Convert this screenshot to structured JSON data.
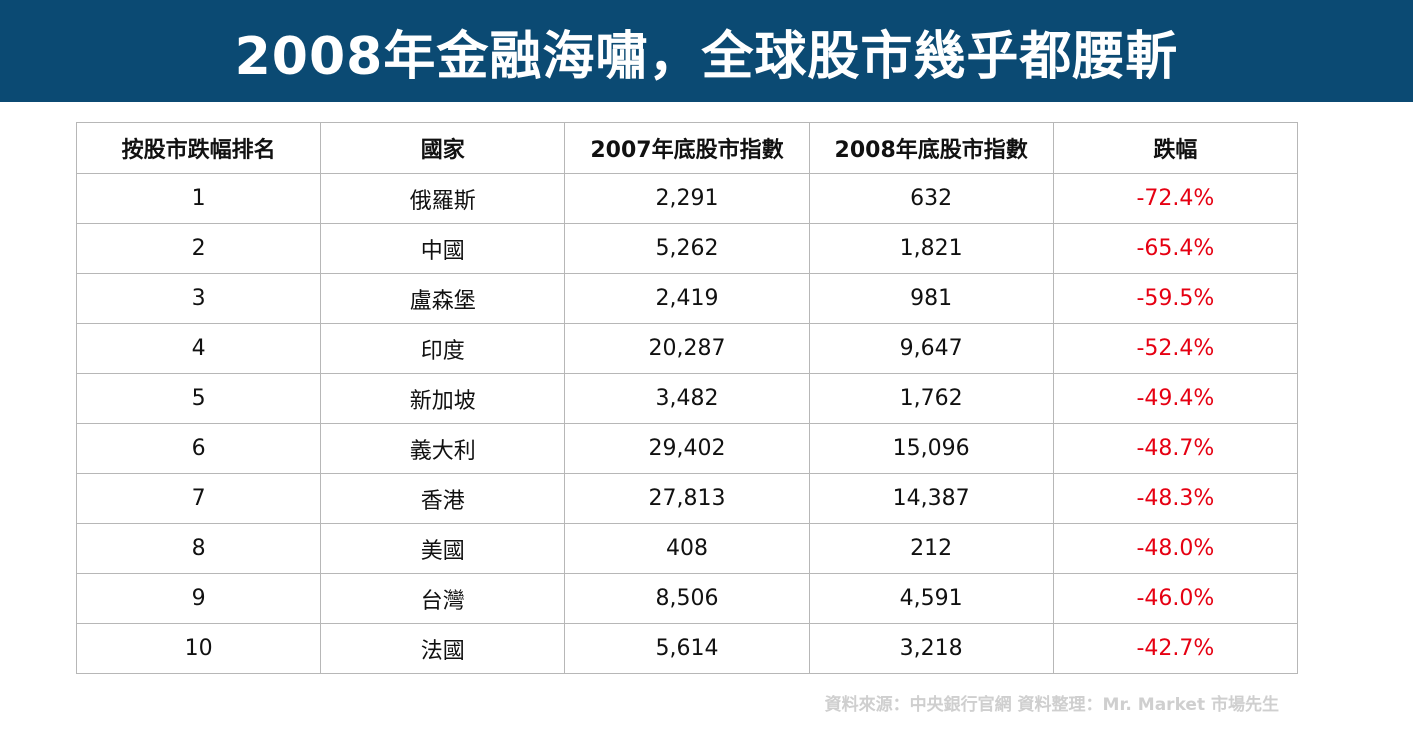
{
  "title": "2008年金融海嘯，全球股市幾乎都腰斬",
  "table": {
    "headers": [
      "按股市跌幅排名",
      "國家",
      "2007年底股市指數",
      "2008年底股市指數",
      "跌幅"
    ],
    "rows": [
      {
        "rank": "1",
        "country": "俄羅斯",
        "idx2007": "2,291",
        "idx2008": "632",
        "drop": "-72.4%"
      },
      {
        "rank": "2",
        "country": "中國",
        "idx2007": "5,262",
        "idx2008": "1,821",
        "drop": "-65.4%"
      },
      {
        "rank": "3",
        "country": "盧森堡",
        "idx2007": "2,419",
        "idx2008": "981",
        "drop": "-59.5%"
      },
      {
        "rank": "4",
        "country": "印度",
        "idx2007": "20,287",
        "idx2008": "9,647",
        "drop": "-52.4%"
      },
      {
        "rank": "5",
        "country": "新加坡",
        "idx2007": "3,482",
        "idx2008": "1,762",
        "drop": "-49.4%"
      },
      {
        "rank": "6",
        "country": "義大利",
        "idx2007": "29,402",
        "idx2008": "15,096",
        "drop": "-48.7%"
      },
      {
        "rank": "7",
        "country": "香港",
        "idx2007": "27,813",
        "idx2008": "14,387",
        "drop": "-48.3%"
      },
      {
        "rank": "8",
        "country": "美國",
        "idx2007": "408",
        "idx2008": "212",
        "drop": "-48.0%"
      },
      {
        "rank": "9",
        "country": "台灣",
        "idx2007": "8,506",
        "idx2008": "4,591",
        "drop": "-46.0%"
      },
      {
        "rank": "10",
        "country": "法國",
        "idx2007": "5,614",
        "idx2008": "3,218",
        "drop": "-42.7%"
      }
    ]
  },
  "source": "資料來源：中央銀行官網  資料整理：Mr. Market 市場先生",
  "colors": {
    "banner": "#0b4a73",
    "drop_text": "#e60012",
    "source_text": "#cfcfcf"
  }
}
